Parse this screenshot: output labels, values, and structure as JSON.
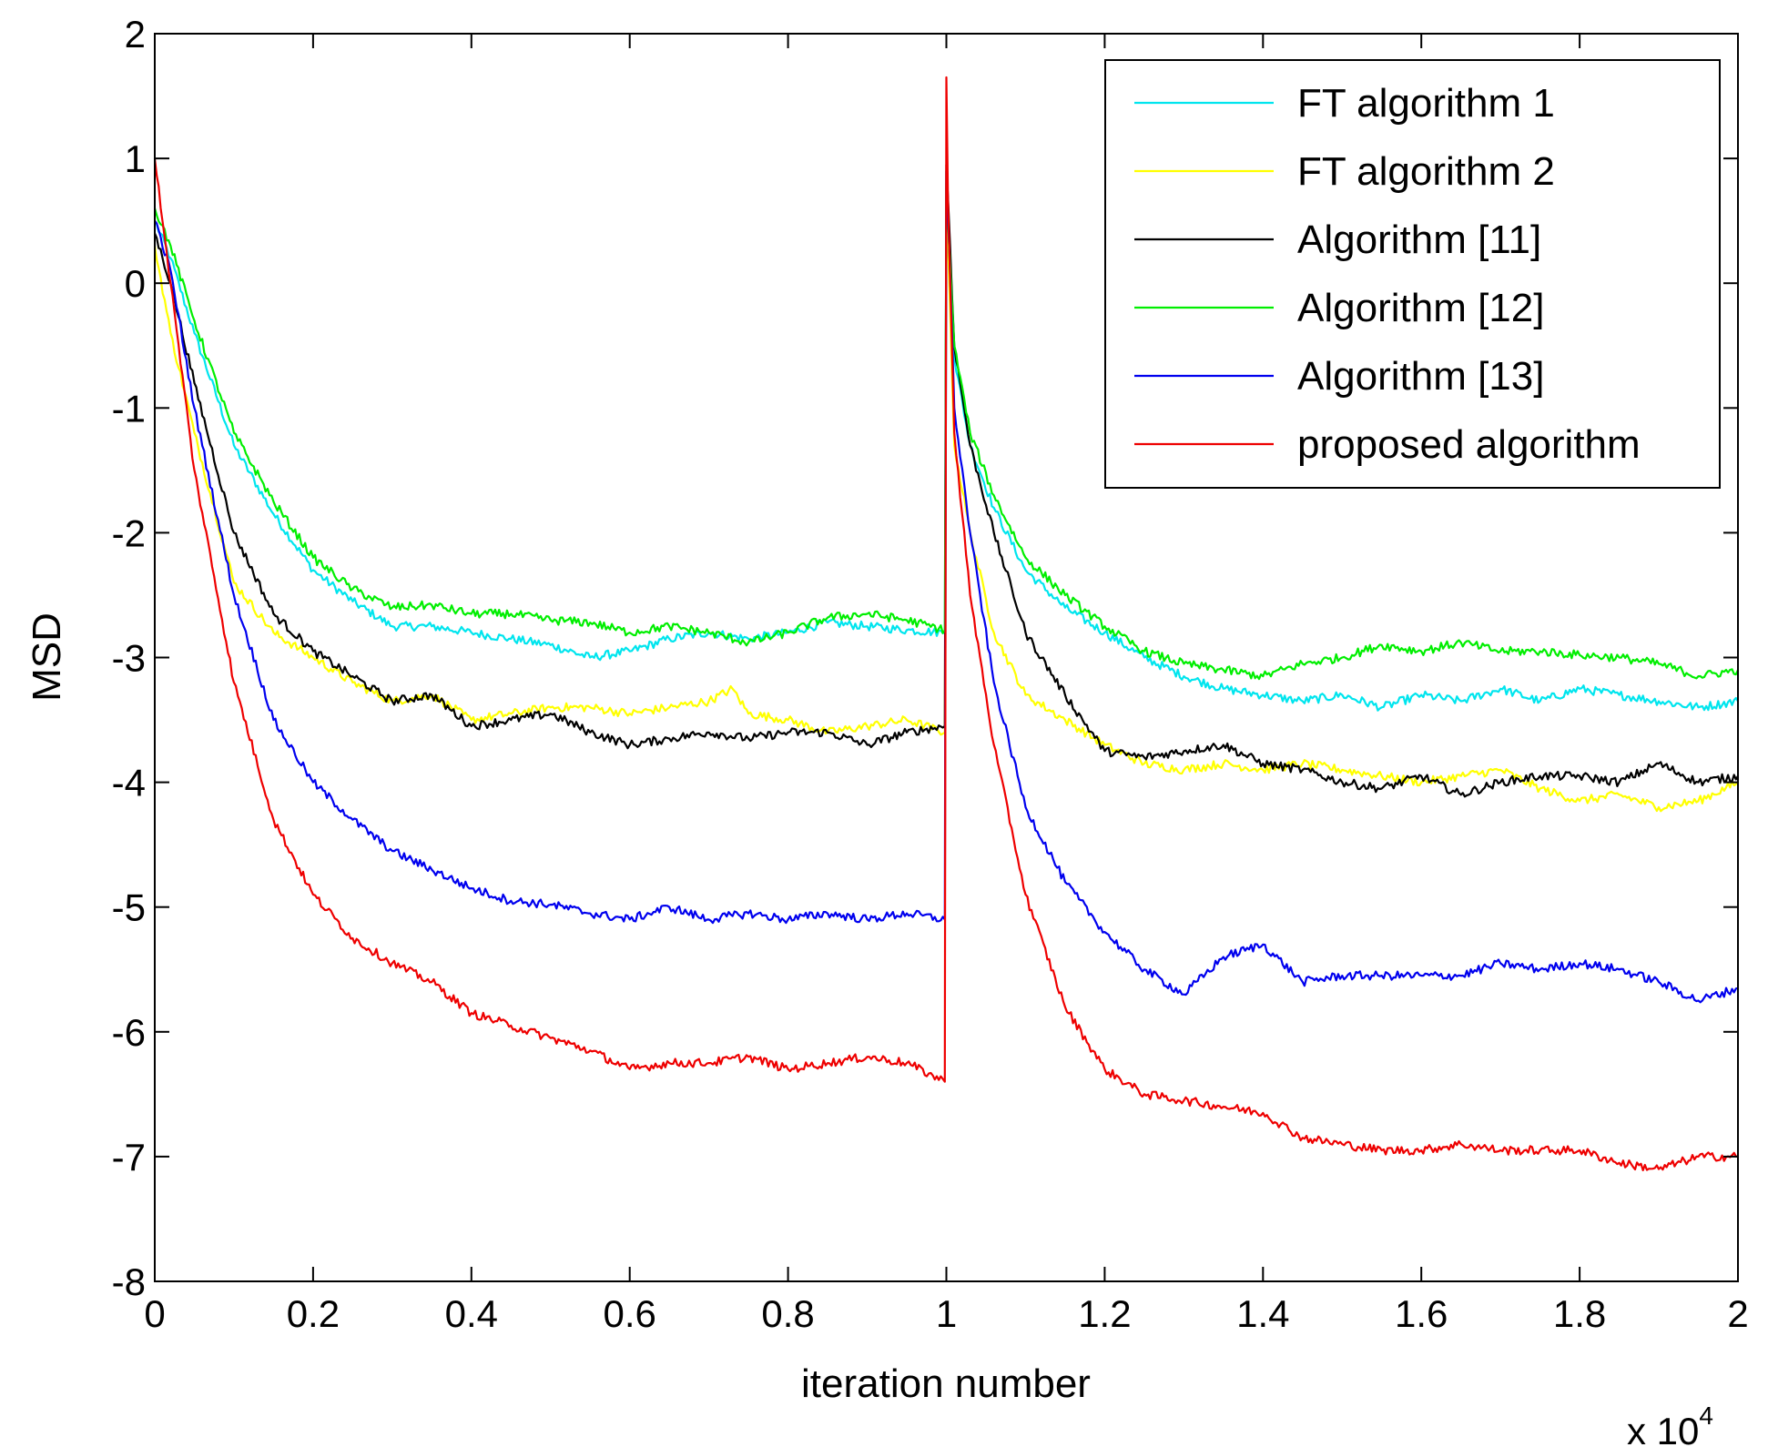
{
  "chart_data": {
    "type": "line",
    "title": "",
    "xlabel": "iteration number",
    "ylabel": "MSD",
    "x_exponent_base": "x 10",
    "x_exponent_power": "4",
    "xlim": [
      0,
      2
    ],
    "ylim": [
      -8,
      2
    ],
    "x_ticks": [
      0,
      0.2,
      0.4,
      0.6,
      0.8,
      1,
      1.2,
      1.4,
      1.6,
      1.8,
      2
    ],
    "x_tick_labels": [
      "0",
      "0.2",
      "0.4",
      "0.6",
      "0.8",
      "1",
      "1.2",
      "1.4",
      "1.6",
      "1.8",
      "2"
    ],
    "y_ticks": [
      2,
      1,
      0,
      -1,
      -2,
      -3,
      -4,
      -5,
      -6,
      -7,
      -8
    ],
    "y_tick_labels": [
      "2",
      "1",
      "0",
      "-1",
      "-2",
      "-3",
      "-4",
      "-5",
      "-6",
      "-7",
      "-8"
    ],
    "grid": false,
    "legend_position": "top-right",
    "series": [
      {
        "name": "FT algorithm 1",
        "color": "#00e5ee",
        "x": [
          0,
          0.02,
          0.05,
          0.1,
          0.15,
          0.2,
          0.25,
          0.3,
          0.35,
          0.4,
          0.45,
          0.5,
          0.55,
          0.6,
          0.65,
          0.7,
          0.75,
          0.8,
          0.85,
          0.9,
          0.95,
          0.998,
          1.0,
          1.002,
          1.01,
          1.03,
          1.06,
          1.1,
          1.15,
          1.2,
          1.25,
          1.3,
          1.35,
          1.4,
          1.45,
          1.5,
          1.55,
          1.6,
          1.65,
          1.7,
          1.75,
          1.8,
          1.85,
          1.9,
          1.95,
          2.0
        ],
        "y": [
          0.5,
          0.2,
          -0.4,
          -1.3,
          -1.85,
          -2.3,
          -2.55,
          -2.75,
          -2.75,
          -2.8,
          -2.85,
          -2.9,
          -3.0,
          -2.95,
          -2.85,
          -2.8,
          -2.85,
          -2.8,
          -2.72,
          -2.75,
          -2.78,
          -2.8,
          0.9,
          0.6,
          -0.6,
          -1.3,
          -1.8,
          -2.3,
          -2.6,
          -2.8,
          -3.0,
          -3.15,
          -3.25,
          -3.3,
          -3.35,
          -3.3,
          -3.4,
          -3.3,
          -3.35,
          -3.25,
          -3.35,
          -3.25,
          -3.3,
          -3.35,
          -3.4,
          -3.35
        ]
      },
      {
        "name": "FT algorithm 2",
        "color": "#ffff00",
        "x": [
          0,
          0.02,
          0.05,
          0.1,
          0.15,
          0.2,
          0.25,
          0.3,
          0.35,
          0.4,
          0.45,
          0.5,
          0.55,
          0.6,
          0.65,
          0.7,
          0.73,
          0.75,
          0.8,
          0.85,
          0.9,
          0.95,
          0.998,
          1.0,
          1.002,
          1.01,
          1.03,
          1.06,
          1.1,
          1.15,
          1.2,
          1.25,
          1.3,
          1.35,
          1.4,
          1.45,
          1.5,
          1.55,
          1.6,
          1.65,
          1.7,
          1.75,
          1.8,
          1.85,
          1.9,
          1.95,
          2.0
        ],
        "y": [
          0.3,
          -0.4,
          -1.2,
          -2.4,
          -2.8,
          -3.0,
          -3.2,
          -3.35,
          -3.3,
          -3.5,
          -3.45,
          -3.4,
          -3.4,
          -3.45,
          -3.4,
          -3.35,
          -3.25,
          -3.45,
          -3.5,
          -3.6,
          -3.55,
          -3.5,
          -3.6,
          0.6,
          0.3,
          -1.3,
          -2.0,
          -2.8,
          -3.3,
          -3.5,
          -3.7,
          -3.85,
          -3.9,
          -3.85,
          -3.9,
          -3.85,
          -3.9,
          -3.95,
          -4.0,
          -3.95,
          -3.9,
          -4.05,
          -4.15,
          -4.1,
          -4.2,
          -4.15,
          -4.0
        ]
      },
      {
        "name": "Algorithm [11]",
        "color": "#000000",
        "x": [
          0,
          0.02,
          0.05,
          0.1,
          0.15,
          0.2,
          0.25,
          0.3,
          0.35,
          0.4,
          0.45,
          0.5,
          0.55,
          0.6,
          0.65,
          0.7,
          0.75,
          0.8,
          0.85,
          0.9,
          0.95,
          0.998,
          1.0,
          1.002,
          1.01,
          1.03,
          1.06,
          1.1,
          1.15,
          1.2,
          1.25,
          1.3,
          1.35,
          1.4,
          1.45,
          1.5,
          1.55,
          1.6,
          1.65,
          1.7,
          1.75,
          1.8,
          1.85,
          1.9,
          1.95,
          2.0
        ],
        "y": [
          0.4,
          0.0,
          -0.8,
          -2.0,
          -2.65,
          -2.95,
          -3.15,
          -3.35,
          -3.3,
          -3.55,
          -3.5,
          -3.45,
          -3.6,
          -3.7,
          -3.65,
          -3.6,
          -3.65,
          -3.6,
          -3.6,
          -3.7,
          -3.6,
          -3.55,
          0.95,
          0.7,
          -0.5,
          -1.3,
          -2.0,
          -2.8,
          -3.3,
          -3.75,
          -3.8,
          -3.75,
          -3.7,
          -3.85,
          -3.9,
          -4.0,
          -4.05,
          -3.95,
          -4.1,
          -4.0,
          -3.95,
          -3.95,
          -4.0,
          -3.85,
          -4.0,
          -3.95
        ]
      },
      {
        "name": "Algorithm [12]",
        "color": "#00ee00",
        "x": [
          0,
          0.02,
          0.05,
          0.1,
          0.15,
          0.2,
          0.25,
          0.3,
          0.35,
          0.4,
          0.45,
          0.5,
          0.55,
          0.6,
          0.65,
          0.7,
          0.75,
          0.8,
          0.85,
          0.9,
          0.95,
          0.998,
          1.0,
          1.002,
          1.01,
          1.03,
          1.06,
          1.1,
          1.15,
          1.2,
          1.25,
          1.3,
          1.35,
          1.4,
          1.45,
          1.5,
          1.55,
          1.6,
          1.65,
          1.7,
          1.75,
          1.8,
          1.85,
          1.9,
          1.95,
          2.0
        ],
        "y": [
          0.6,
          0.3,
          -0.3,
          -1.2,
          -1.75,
          -2.2,
          -2.45,
          -2.6,
          -2.58,
          -2.65,
          -2.65,
          -2.7,
          -2.72,
          -2.8,
          -2.75,
          -2.8,
          -2.88,
          -2.8,
          -2.68,
          -2.65,
          -2.7,
          -2.78,
          0.8,
          0.5,
          -0.5,
          -1.2,
          -1.7,
          -2.2,
          -2.5,
          -2.75,
          -2.95,
          -3.05,
          -3.1,
          -3.15,
          -3.05,
          -3.0,
          -2.9,
          -2.95,
          -2.88,
          -2.95,
          -2.95,
          -2.98,
          -3.0,
          -3.05,
          -3.15,
          -3.1
        ]
      },
      {
        "name": "Algorithm [13]",
        "color": "#0000ee",
        "x": [
          0,
          0.02,
          0.05,
          0.1,
          0.15,
          0.2,
          0.25,
          0.3,
          0.35,
          0.4,
          0.45,
          0.5,
          0.55,
          0.6,
          0.65,
          0.7,
          0.75,
          0.8,
          0.85,
          0.9,
          0.95,
          0.998,
          1.0,
          1.002,
          1.01,
          1.03,
          1.06,
          1.1,
          1.15,
          1.2,
          1.25,
          1.3,
          1.35,
          1.4,
          1.45,
          1.5,
          1.55,
          1.6,
          1.65,
          1.7,
          1.75,
          1.8,
          1.85,
          1.9,
          1.95,
          2.0
        ],
        "y": [
          0.5,
          0.1,
          -1.0,
          -2.5,
          -3.5,
          -4.0,
          -4.3,
          -4.55,
          -4.7,
          -4.85,
          -4.95,
          -4.98,
          -5.05,
          -5.1,
          -5.0,
          -5.1,
          -5.05,
          -5.1,
          -5.05,
          -5.1,
          -5.05,
          -5.1,
          0.9,
          0.6,
          -1.0,
          -2.0,
          -3.2,
          -4.2,
          -4.8,
          -5.2,
          -5.5,
          -5.7,
          -5.4,
          -5.3,
          -5.6,
          -5.55,
          -5.55,
          -5.55,
          -5.55,
          -5.45,
          -5.5,
          -5.45,
          -5.5,
          -5.6,
          -5.75,
          -5.65
        ]
      },
      {
        "name": "proposed algorithm",
        "color": "#ee0000",
        "x": [
          0,
          0.02,
          0.05,
          0.1,
          0.15,
          0.2,
          0.25,
          0.3,
          0.35,
          0.4,
          0.45,
          0.5,
          0.55,
          0.6,
          0.65,
          0.7,
          0.75,
          0.8,
          0.85,
          0.9,
          0.95,
          0.998,
          1.0,
          1.002,
          1.01,
          1.03,
          1.06,
          1.1,
          1.15,
          1.2,
          1.25,
          1.3,
          1.35,
          1.4,
          1.45,
          1.5,
          1.55,
          1.6,
          1.65,
          1.7,
          1.75,
          1.8,
          1.85,
          1.9,
          1.95,
          2.0
        ],
        "y": [
          1.0,
          0.0,
          -1.5,
          -3.2,
          -4.3,
          -4.9,
          -5.25,
          -5.45,
          -5.6,
          -5.85,
          -5.95,
          -6.05,
          -6.15,
          -6.3,
          -6.25,
          -6.25,
          -6.2,
          -6.3,
          -6.25,
          -6.2,
          -6.25,
          -6.4,
          1.65,
          0.7,
          -1.2,
          -2.5,
          -3.7,
          -4.9,
          -5.8,
          -6.3,
          -6.5,
          -6.55,
          -6.6,
          -6.65,
          -6.85,
          -6.9,
          -6.95,
          -6.95,
          -6.9,
          -6.95,
          -6.95,
          -6.95,
          -7.05,
          -7.1,
          -7.0,
          -7.0
        ]
      }
    ]
  }
}
